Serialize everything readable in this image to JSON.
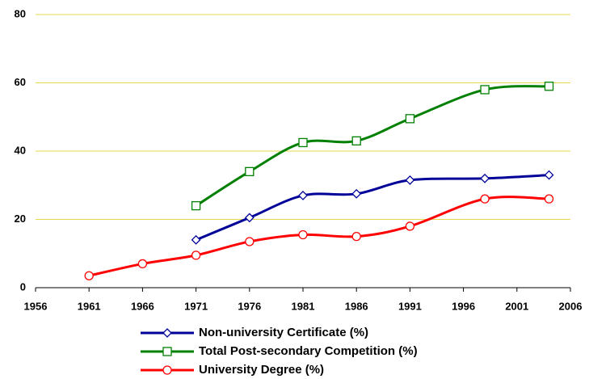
{
  "chart_data": {
    "type": "line",
    "xlim": [
      1956,
      2006
    ],
    "xticks": [
      1956,
      1961,
      1966,
      1971,
      1976,
      1981,
      1986,
      1991,
      1996,
      2001,
      2006
    ],
    "ylim": [
      0,
      80
    ],
    "yticks": [
      0,
      20,
      40,
      60,
      80
    ],
    "grid": true,
    "grid_color": "#e6d84a",
    "legend": "bottom",
    "x": [
      1961,
      1966,
      1971,
      1976,
      1981,
      1986,
      1991,
      1998,
      2004
    ],
    "series": [
      {
        "name": "Non-university Certificate (%)",
        "color": "#000099",
        "marker": "diamond",
        "values": [
          null,
          null,
          14,
          20.5,
          27,
          27.5,
          31.5,
          32,
          33
        ]
      },
      {
        "name": "Total Post-secondary Competition (%)",
        "color": "#008000",
        "marker": "square",
        "values": [
          null,
          null,
          24,
          34,
          42.5,
          43,
          49.5,
          58,
          59
        ]
      },
      {
        "name": "University Degree (%)",
        "color": "#ff0000",
        "marker": "circle",
        "values": [
          3.5,
          7,
          9.5,
          13.5,
          15.5,
          15,
          18,
          26,
          26
        ]
      }
    ]
  }
}
